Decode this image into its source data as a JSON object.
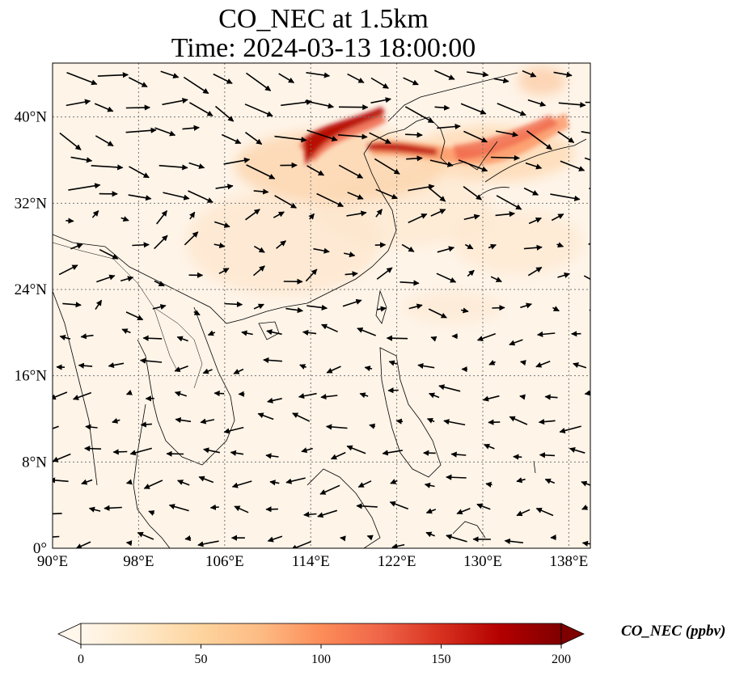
{
  "title": {
    "line1": "CO_NEC at 1.5km",
    "line2": "Time: 2024-03-13 18:00:00"
  },
  "map": {
    "variable": "CO_NEC",
    "height": "1.5km",
    "time": "2024-03-13 18:00:00",
    "lon_range": [
      90,
      140
    ],
    "lat_range": [
      0,
      45
    ],
    "lon_ticks": [
      90,
      98,
      106,
      114,
      122,
      130,
      138
    ],
    "lon_tick_labels": [
      "90°E",
      "98°E",
      "106°E",
      "114°E",
      "122°E",
      "130°E",
      "138°E"
    ],
    "lat_ticks": [
      0,
      8,
      16,
      24,
      32,
      40
    ],
    "lat_tick_labels": [
      "0°",
      "8°N",
      "16°N",
      "24°N",
      "32°N",
      "40°N"
    ],
    "gridlines": "dotted",
    "layers": [
      "CO_NEC concentration field",
      "coastlines",
      "country borders",
      "wind vectors"
    ]
  },
  "colorbar": {
    "label": "CO_NEC (ppbv)",
    "colormap": "OrRd",
    "range": [
      0,
      200
    ],
    "ticks": [
      0,
      50,
      100,
      150,
      200
    ],
    "tick_labels": [
      "0",
      "50",
      "100",
      "150",
      "200"
    ],
    "extend": "both",
    "orientation": "horizontal",
    "colors": [
      "#fff7ec",
      "#fee8c8",
      "#fdd49e",
      "#fdbb84",
      "#fc8d59",
      "#ef6548",
      "#d7301f",
      "#b30000",
      "#7f0000"
    ]
  }
}
